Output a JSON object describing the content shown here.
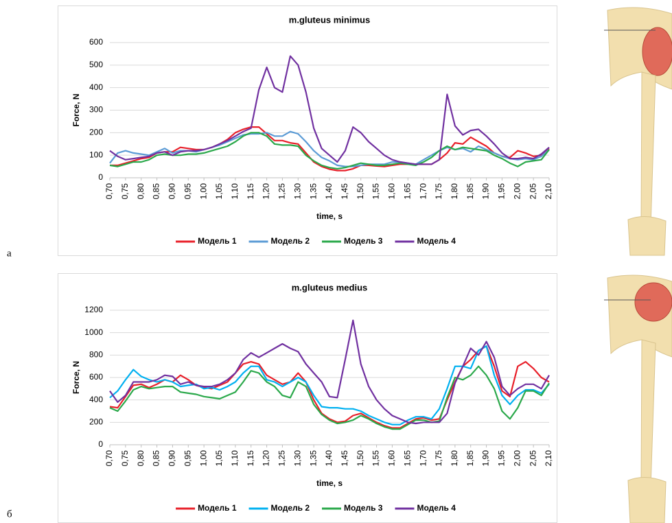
{
  "figure_labels": [
    "а",
    "б"
  ],
  "chart_data": [
    {
      "type": "line",
      "title": "m.gluteus minimus",
      "x_label": "time, s",
      "y_label": "Force, N",
      "legend": "bottom",
      "grid": true,
      "x": [
        0.7,
        0.725,
        0.75,
        0.775,
        0.8,
        0.825,
        0.85,
        0.875,
        0.9,
        0.925,
        0.95,
        0.975,
        1,
        1.025,
        1.05,
        1.075,
        1.1,
        1.125,
        1.15,
        1.175,
        1.2,
        1.225,
        1.25,
        1.275,
        1.3,
        1.325,
        1.35,
        1.375,
        1.4,
        1.425,
        1.45,
        1.475,
        1.5,
        1.525,
        1.55,
        1.575,
        1.6,
        1.625,
        1.65,
        1.675,
        1.7,
        1.725,
        1.75,
        1.775,
        1.8,
        1.825,
        1.85,
        1.875,
        1.9,
        1.925,
        1.95,
        1.975,
        2,
        2.025,
        2.05,
        2.075,
        2.1
      ],
      "xlim": [
        0.7,
        2.1
      ],
      "xticks": [
        {
          "value": 0.7,
          "label": "0,70"
        },
        {
          "value": 0.75,
          "label": "0,75"
        },
        {
          "value": 0.8,
          "label": "0,80"
        },
        {
          "value": 0.85,
          "label": "0,85"
        },
        {
          "value": 0.9,
          "label": "0,90"
        },
        {
          "value": 0.95,
          "label": "0,95"
        },
        {
          "value": 1,
          "label": "1,00"
        },
        {
          "value": 1.05,
          "label": "1,05"
        },
        {
          "value": 1.1,
          "label": "1,10"
        },
        {
          "value": 1.15,
          "label": "1,15"
        },
        {
          "value": 1.2,
          "label": "1,20"
        },
        {
          "value": 1.25,
          "label": "1,25"
        },
        {
          "value": 1.3,
          "label": "1,30"
        },
        {
          "value": 1.35,
          "label": "1,35"
        },
        {
          "value": 1.4,
          "label": "1,40"
        },
        {
          "value": 1.45,
          "label": "1,45"
        },
        {
          "value": 1.5,
          "label": "1,50"
        },
        {
          "value": 1.55,
          "label": "1,55"
        },
        {
          "value": 1.6,
          "label": "1,60"
        },
        {
          "value": 1.65,
          "label": "1,65"
        },
        {
          "value": 1.7,
          "label": "1,70"
        },
        {
          "value": 1.75,
          "label": "1,75"
        },
        {
          "value": 1.8,
          "label": "1,80"
        },
        {
          "value": 1.85,
          "label": "1,85"
        },
        {
          "value": 1.9,
          "label": "1,90"
        },
        {
          "value": 1.95,
          "label": "1,95"
        },
        {
          "value": 2,
          "label": "2,00"
        },
        {
          "value": 2.05,
          "label": "2,05"
        },
        {
          "value": 2.1,
          "label": "2,10"
        }
      ],
      "ylim": [
        0,
        600
      ],
      "yticks": [
        0,
        100,
        200,
        300,
        400,
        500,
        600
      ],
      "series": [
        {
          "name": "Модель 1",
          "color": "#e8202a",
          "values": [
            55,
            55,
            65,
            75,
            85,
            90,
            110,
            115,
            115,
            135,
            130,
            125,
            125,
            135,
            150,
            170,
            200,
            215,
            225,
            225,
            195,
            165,
            165,
            155,
            150,
            110,
            70,
            50,
            38,
            32,
            32,
            40,
            55,
            55,
            52,
            50,
            55,
            60,
            60,
            60,
            60,
            60,
            80,
            110,
            155,
            150,
            180,
            160,
            140,
            110,
            95,
            90,
            120,
            110,
            95,
            100,
            130
          ]
        },
        {
          "name": "Модель 2",
          "color": "#5b9bd5",
          "values": [
            65,
            110,
            120,
            110,
            105,
            100,
            115,
            130,
            110,
            120,
            120,
            115,
            125,
            135,
            145,
            160,
            175,
            190,
            195,
            195,
            200,
            185,
            185,
            205,
            195,
            160,
            120,
            90,
            75,
            55,
            50,
            50,
            55,
            60,
            60,
            60,
            70,
            70,
            65,
            60,
            80,
            100,
            120,
            135,
            125,
            130,
            115,
            140,
            125,
            110,
            95,
            85,
            80,
            85,
            80,
            95,
            125
          ]
        },
        {
          "name": "Модель 3",
          "color": "#2aa84a",
          "values": [
            55,
            50,
            60,
            70,
            70,
            80,
            100,
            105,
            100,
            100,
            105,
            105,
            110,
            120,
            130,
            140,
            160,
            185,
            200,
            200,
            185,
            150,
            145,
            145,
            140,
            100,
            75,
            55,
            45,
            40,
            45,
            55,
            65,
            60,
            55,
            55,
            60,
            65,
            60,
            55,
            70,
            90,
            120,
            140,
            125,
            135,
            130,
            125,
            120,
            100,
            85,
            65,
            50,
            70,
            75,
            80,
            125
          ]
        },
        {
          "name": "Модель 4",
          "color": "#7030a0",
          "values": [
            120,
            95,
            80,
            85,
            90,
            95,
            110,
            115,
            100,
            115,
            120,
            120,
            125,
            135,
            150,
            165,
            185,
            205,
            220,
            390,
            490,
            400,
            380,
            540,
            500,
            380,
            220,
            130,
            100,
            70,
            120,
            225,
            200,
            160,
            130,
            100,
            80,
            70,
            65,
            60,
            60,
            60,
            80,
            370,
            230,
            190,
            210,
            215,
            185,
            150,
            110,
            85,
            85,
            90,
            85,
            105,
            135
          ]
        }
      ]
    },
    {
      "type": "line",
      "title": "m.gluteus medius",
      "x_label": "time, s",
      "y_label": "Force, N",
      "legend": "bottom",
      "grid": true,
      "x": [
        0.7,
        0.725,
        0.75,
        0.775,
        0.8,
        0.825,
        0.85,
        0.875,
        0.9,
        0.925,
        0.95,
        0.975,
        1,
        1.025,
        1.05,
        1.075,
        1.1,
        1.125,
        1.15,
        1.175,
        1.2,
        1.225,
        1.25,
        1.275,
        1.3,
        1.325,
        1.35,
        1.375,
        1.4,
        1.425,
        1.45,
        1.475,
        1.5,
        1.525,
        1.55,
        1.575,
        1.6,
        1.625,
        1.65,
        1.675,
        1.7,
        1.725,
        1.75,
        1.775,
        1.8,
        1.825,
        1.85,
        1.875,
        1.9,
        1.925,
        1.95,
        1.975,
        2,
        2.025,
        2.05,
        2.075,
        2.1
      ],
      "xlim": [
        0.7,
        2.1
      ],
      "xticks": [
        {
          "value": 0.7,
          "label": "0,70"
        },
        {
          "value": 0.75,
          "label": "0,75"
        },
        {
          "value": 0.8,
          "label": "0,80"
        },
        {
          "value": 0.85,
          "label": "0,85"
        },
        {
          "value": 0.9,
          "label": "0,90"
        },
        {
          "value": 0.95,
          "label": "0,95"
        },
        {
          "value": 1,
          "label": "1,00"
        },
        {
          "value": 1.05,
          "label": "1,05"
        },
        {
          "value": 1.1,
          "label": "1,10"
        },
        {
          "value": 1.15,
          "label": "1,15"
        },
        {
          "value": 1.2,
          "label": "1,20"
        },
        {
          "value": 1.25,
          "label": "1,25"
        },
        {
          "value": 1.3,
          "label": "1,30"
        },
        {
          "value": 1.35,
          "label": "1,35"
        },
        {
          "value": 1.4,
          "label": "1,40"
        },
        {
          "value": 1.45,
          "label": "1,45"
        },
        {
          "value": 1.5,
          "label": "1,50"
        },
        {
          "value": 1.55,
          "label": "1,55"
        },
        {
          "value": 1.6,
          "label": "1,60"
        },
        {
          "value": 1.65,
          "label": "1,65"
        },
        {
          "value": 1.7,
          "label": "1,70"
        },
        {
          "value": 1.75,
          "label": "1,75"
        },
        {
          "value": 1.8,
          "label": "1,80"
        },
        {
          "value": 1.85,
          "label": "1,85"
        },
        {
          "value": 1.9,
          "label": "1,90"
        },
        {
          "value": 1.95,
          "label": "1,95"
        },
        {
          "value": 2,
          "label": "2,00"
        },
        {
          "value": 2.05,
          "label": "2,05"
        },
        {
          "value": 2.1,
          "label": "2,10"
        }
      ],
      "ylim": [
        0,
        1200
      ],
      "yticks": [
        0,
        200,
        400,
        600,
        800,
        1000,
        1200
      ],
      "series": [
        {
          "name": "Модель 1",
          "color": "#e8202a",
          "values": [
            340,
            330,
            430,
            530,
            540,
            510,
            540,
            580,
            560,
            620,
            580,
            530,
            510,
            500,
            530,
            560,
            640,
            720,
            740,
            720,
            620,
            580,
            540,
            560,
            640,
            560,
            400,
            280,
            230,
            200,
            210,
            260,
            280,
            240,
            200,
            170,
            150,
            150,
            190,
            230,
            240,
            220,
            230,
            400,
            560,
            700,
            760,
            840,
            880,
            700,
            480,
            430,
            700,
            740,
            680,
            600,
            560
          ]
        },
        {
          "name": "Модель 2",
          "color": "#00b0f0",
          "values": [
            420,
            480,
            580,
            670,
            610,
            580,
            560,
            580,
            560,
            520,
            530,
            540,
            500,
            510,
            490,
            520,
            560,
            640,
            700,
            700,
            580,
            560,
            520,
            560,
            600,
            560,
            440,
            340,
            330,
            330,
            320,
            320,
            300,
            260,
            230,
            200,
            180,
            180,
            220,
            250,
            250,
            230,
            320,
            500,
            700,
            700,
            680,
            840,
            880,
            620,
            440,
            360,
            440,
            490,
            490,
            460,
            540
          ]
        },
        {
          "name": "Модель 3",
          "color": "#2aa84a",
          "values": [
            330,
            300,
            390,
            490,
            520,
            500,
            510,
            520,
            520,
            470,
            460,
            450,
            430,
            420,
            410,
            440,
            470,
            560,
            660,
            640,
            560,
            520,
            440,
            420,
            560,
            520,
            360,
            270,
            220,
            190,
            200,
            220,
            260,
            230,
            190,
            160,
            140,
            140,
            180,
            220,
            220,
            200,
            210,
            420,
            600,
            580,
            620,
            700,
            620,
            500,
            300,
            230,
            330,
            480,
            480,
            440,
            550
          ]
        },
        {
          "name": "Модель 4",
          "color": "#7030a0",
          "values": [
            480,
            380,
            440,
            560,
            560,
            560,
            580,
            620,
            610,
            540,
            560,
            530,
            520,
            520,
            540,
            580,
            640,
            760,
            820,
            780,
            820,
            860,
            900,
            860,
            830,
            720,
            640,
            560,
            430,
            420,
            760,
            1110,
            720,
            520,
            400,
            320,
            260,
            230,
            200,
            190,
            200,
            200,
            200,
            280,
            550,
            700,
            860,
            800,
            920,
            780,
            520,
            440,
            500,
            540,
            540,
            500,
            620
          ]
        }
      ]
    }
  ]
}
